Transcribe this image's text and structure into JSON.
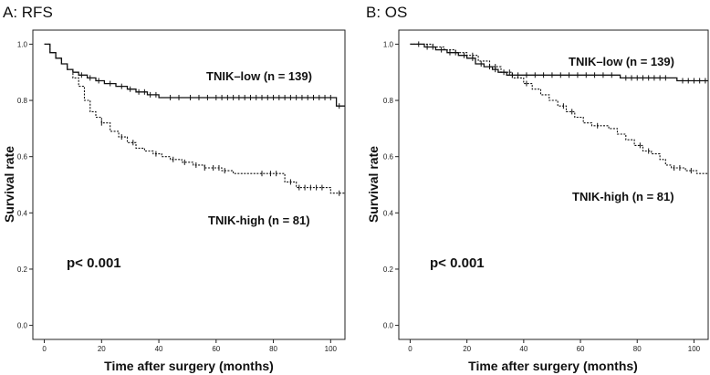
{
  "chart_data": [
    {
      "type": "line",
      "panel_title": "A: RFS",
      "xlabel": "Time after surgery (months)",
      "ylabel": "Survival rate",
      "xlim": [
        -4,
        105
      ],
      "ylim": [
        -0.05,
        1.05
      ],
      "xticks": [
        0,
        20,
        40,
        60,
        80,
        100
      ],
      "yticks": [
        0.0,
        0.2,
        0.4,
        0.6,
        0.8,
        1.0
      ],
      "xtick_labels": [
        "0",
        "20",
        "40",
        "60",
        "80",
        "100"
      ],
      "ytick_labels": [
        "0.0",
        "0.2",
        "0.4",
        "0.6",
        "0.8",
        "1.0"
      ],
      "annotation": "p< 0.001",
      "series": [
        {
          "name": "TNIK–low (n = 139)",
          "style": "solid",
          "steps": [
            [
              0,
              1.0
            ],
            [
              2,
              0.97
            ],
            [
              4,
              0.95
            ],
            [
              6,
              0.93
            ],
            [
              8,
              0.91
            ],
            [
              10,
              0.9
            ],
            [
              12,
              0.89
            ],
            [
              15,
              0.88
            ],
            [
              18,
              0.87
            ],
            [
              21,
              0.86
            ],
            [
              25,
              0.85
            ],
            [
              29,
              0.84
            ],
            [
              32,
              0.83
            ],
            [
              36,
              0.82
            ],
            [
              40,
              0.81
            ],
            [
              101,
              0.81
            ],
            [
              102,
              0.78
            ],
            [
              105,
              0.78
            ]
          ],
          "censors": [
            13,
            16,
            19,
            23,
            27,
            30,
            33,
            35,
            37,
            39,
            44,
            47,
            51,
            54,
            57,
            60,
            62,
            64,
            66,
            68,
            70,
            72,
            74,
            76,
            78,
            80,
            82,
            84,
            86,
            88,
            90,
            92,
            94,
            96,
            98,
            100,
            103
          ]
        },
        {
          "name": "TNIK-high (n = 81)",
          "style": "dashed",
          "steps": [
            [
              0,
              1.0
            ],
            [
              2,
              0.97
            ],
            [
              4,
              0.95
            ],
            [
              6,
              0.93
            ],
            [
              8,
              0.91
            ],
            [
              10,
              0.88
            ],
            [
              12,
              0.85
            ],
            [
              14,
              0.8
            ],
            [
              16,
              0.76
            ],
            [
              18,
              0.74
            ],
            [
              20,
              0.72
            ],
            [
              23,
              0.69
            ],
            [
              26,
              0.67
            ],
            [
              29,
              0.65
            ],
            [
              32,
              0.63
            ],
            [
              35,
              0.62
            ],
            [
              38,
              0.61
            ],
            [
              41,
              0.6
            ],
            [
              44,
              0.59
            ],
            [
              48,
              0.58
            ],
            [
              52,
              0.57
            ],
            [
              56,
              0.56
            ],
            [
              62,
              0.55
            ],
            [
              66,
              0.54
            ],
            [
              82,
              0.54
            ],
            [
              84,
              0.51
            ],
            [
              88,
              0.49
            ],
            [
              98,
              0.49
            ],
            [
              100,
              0.47
            ],
            [
              105,
              0.47
            ]
          ],
          "censors": [
            20,
            27,
            31,
            39,
            45,
            49,
            53,
            56,
            59,
            61,
            63,
            76,
            79,
            81,
            86,
            89,
            91,
            93,
            95,
            97,
            103
          ]
        }
      ],
      "labels": [
        {
          "text_key": 0,
          "x": 0,
          "y": 0
        },
        {
          "text_key": 1,
          "x": 0,
          "y": 0
        }
      ]
    },
    {
      "type": "line",
      "panel_title": "B: OS",
      "xlabel": "Time after surgery (months)",
      "ylabel": "Survival rate",
      "xlim": [
        -4,
        105
      ],
      "ylim": [
        -0.05,
        1.05
      ],
      "xticks": [
        0,
        20,
        40,
        60,
        80,
        100
      ],
      "yticks": [
        0.0,
        0.2,
        0.4,
        0.6,
        0.8,
        1.0
      ],
      "xtick_labels": [
        "0",
        "20",
        "40",
        "60",
        "80",
        "100"
      ],
      "ytick_labels": [
        "0.0",
        "0.2",
        "0.4",
        "0.6",
        "0.8",
        "1.0"
      ],
      "annotation": "p< 0.001",
      "series": [
        {
          "name": "TNIK–low (n = 139)",
          "style": "solid",
          "steps": [
            [
              0,
              1.0
            ],
            [
              5,
              0.99
            ],
            [
              9,
              0.98
            ],
            [
              13,
              0.97
            ],
            [
              17,
              0.96
            ],
            [
              20,
              0.95
            ],
            [
              23,
              0.93
            ],
            [
              26,
              0.92
            ],
            [
              29,
              0.91
            ],
            [
              31,
              0.9
            ],
            [
              34,
              0.89
            ],
            [
              72,
              0.89
            ],
            [
              74,
              0.88
            ],
            [
              92,
              0.88
            ],
            [
              94,
              0.87
            ],
            [
              105,
              0.87
            ]
          ],
          "censors": [
            3,
            6,
            8,
            11,
            14,
            16,
            19,
            22,
            25,
            28,
            30,
            33,
            36,
            38,
            41,
            44,
            47,
            50,
            53,
            56,
            59,
            62,
            65,
            68,
            71,
            76,
            78,
            80,
            82,
            84,
            86,
            88,
            90,
            96,
            98,
            100,
            102,
            104
          ]
        },
        {
          "name": "TNIK-high (n = 81)",
          "style": "dashed",
          "steps": [
            [
              0,
              1.0
            ],
            [
              8,
              0.99
            ],
            [
              12,
              0.98
            ],
            [
              16,
              0.97
            ],
            [
              20,
              0.96
            ],
            [
              24,
              0.94
            ],
            [
              28,
              0.92
            ],
            [
              32,
              0.9
            ],
            [
              36,
              0.88
            ],
            [
              40,
              0.86
            ],
            [
              43,
              0.84
            ],
            [
              46,
              0.82
            ],
            [
              49,
              0.8
            ],
            [
              52,
              0.78
            ],
            [
              55,
              0.76
            ],
            [
              58,
              0.74
            ],
            [
              61,
              0.72
            ],
            [
              64,
              0.71
            ],
            [
              70,
              0.7
            ],
            [
              73,
              0.68
            ],
            [
              76,
              0.66
            ],
            [
              79,
              0.64
            ],
            [
              82,
              0.62
            ],
            [
              85,
              0.61
            ],
            [
              88,
              0.59
            ],
            [
              90,
              0.57
            ],
            [
              92,
              0.56
            ],
            [
              97,
              0.55
            ],
            [
              101,
              0.54
            ],
            [
              105,
              0.54
            ]
          ],
          "censors": [
            22,
            30,
            35,
            41,
            54,
            57,
            66,
            81,
            84,
            93,
            95,
            99
          ]
        }
      ]
    }
  ]
}
